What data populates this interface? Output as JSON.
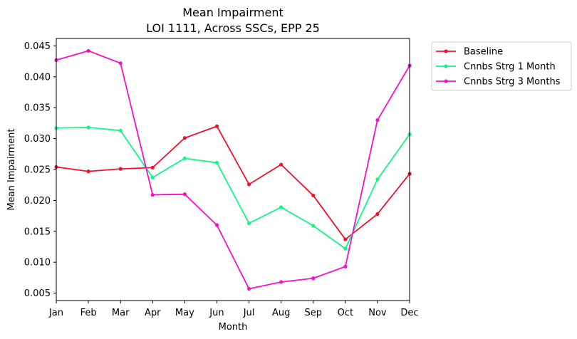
{
  "chart_data": {
    "type": "line",
    "title": "Mean Impairment",
    "subtitle": "LOI 1111, Across SSCs, EPP 25",
    "xlabel": "Month",
    "ylabel": "Mean Impairment",
    "categories": [
      "Jan",
      "Feb",
      "Mar",
      "Apr",
      "May",
      "Jun",
      "Jul",
      "Aug",
      "Sep",
      "Oct",
      "Nov",
      "Dec"
    ],
    "ylim": [
      0.0038,
      0.0462
    ],
    "yticks": [
      "0.005",
      "0.010",
      "0.015",
      "0.020",
      "0.025",
      "0.030",
      "0.035",
      "0.040",
      "0.045"
    ],
    "grid": false,
    "legend_position": "outside-upper-right",
    "series": [
      {
        "name": "Baseline",
        "color": "#f0122d",
        "values": [
          0.0254,
          0.0247,
          0.0251,
          0.0253,
          0.0301,
          0.032,
          0.0226,
          0.0258,
          0.0208,
          0.0137,
          0.0178,
          0.0243
        ]
      },
      {
        "name": "Cnnbs Strg 1 Month",
        "color": "#11f585",
        "values": [
          0.0317,
          0.0318,
          0.0313,
          0.0237,
          0.0268,
          0.0261,
          0.0163,
          0.0189,
          0.0159,
          0.0122,
          0.0234,
          0.0307
        ]
      },
      {
        "name": "Cnnbs Strg 3 Months",
        "color": "#f710c9",
        "values": [
          0.0427,
          0.0442,
          0.0422,
          0.0209,
          0.021,
          0.016,
          0.0057,
          0.0068,
          0.0074,
          0.0093,
          0.033,
          0.0418
        ]
      }
    ]
  }
}
